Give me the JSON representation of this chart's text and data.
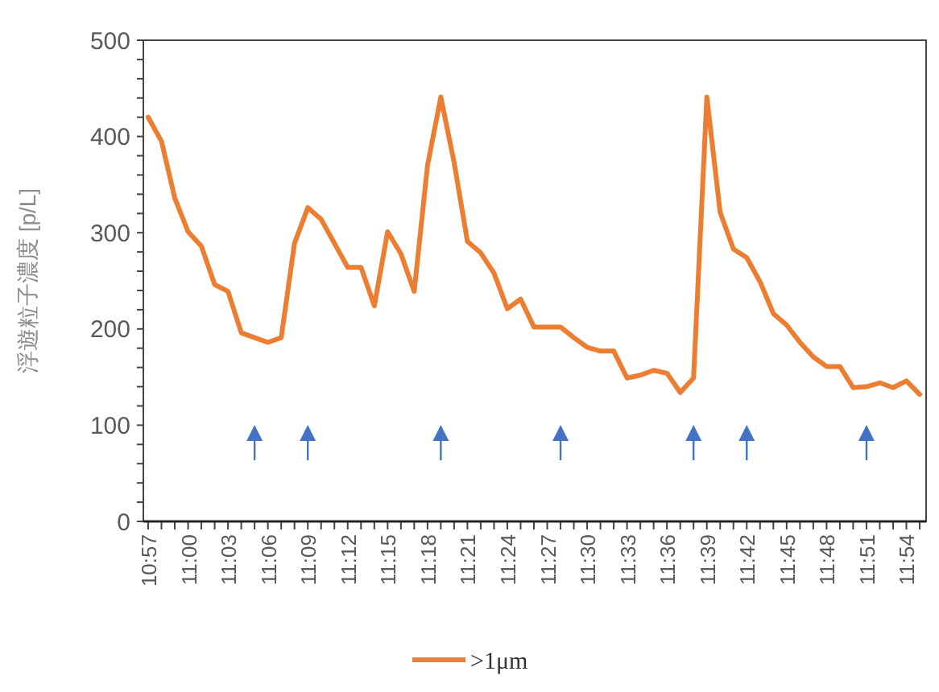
{
  "chart_data": {
    "type": "line",
    "ylabel": "浮遊粒子濃度 [p/L]",
    "categories": [
      "10:57",
      null,
      null,
      "11:00",
      null,
      null,
      "11:03",
      null,
      null,
      "11:06",
      null,
      null,
      "11:09",
      null,
      null,
      "11:12",
      null,
      null,
      "11:15",
      null,
      null,
      "11:18",
      null,
      null,
      "11:21",
      null,
      null,
      "11:24",
      null,
      null,
      "11:27",
      null,
      null,
      "11:30",
      null,
      null,
      "11:33",
      null,
      null,
      "11:36",
      null,
      null,
      "11:39",
      null,
      null,
      "11:42",
      null,
      null,
      "11:45",
      null,
      null,
      "11:48",
      null,
      null,
      "11:51",
      null,
      null,
      "11:54",
      null
    ],
    "series": [
      {
        "name": ">1μm",
        "color": "#ed7d31",
        "values": [
          420,
          395,
          336,
          301,
          286,
          246,
          239,
          196,
          191,
          186,
          191,
          289,
          326,
          314,
          289,
          264,
          264,
          224,
          301,
          278,
          239,
          370,
          441,
          373,
          291,
          279,
          258,
          221,
          231,
          202,
          202,
          202,
          191,
          181,
          177,
          177,
          149,
          152,
          157,
          154,
          134,
          149,
          441,
          321,
          283,
          274,
          249,
          216,
          204,
          186,
          171,
          161,
          161,
          139,
          140,
          144,
          139,
          146,
          132
        ]
      }
    ],
    "ylim": [
      0,
      500
    ],
    "yticks": [
      0,
      {
        "value": 20,
        "label": null
      },
      {
        "value": 40,
        "label": null
      },
      {
        "value": 60,
        "label": null
      },
      {
        "value": 80,
        "label": null
      },
      100,
      {
        "value": 120,
        "label": null
      },
      {
        "value": 140,
        "label": null
      },
      {
        "value": 160,
        "label": null
      },
      {
        "value": 180,
        "label": null
      },
      200,
      {
        "value": 220,
        "label": null
      },
      {
        "value": 240,
        "label": null
      },
      {
        "value": 260,
        "label": null
      },
      {
        "value": 280,
        "label": null
      },
      300,
      {
        "value": 320,
        "label": null
      },
      {
        "value": 340,
        "label": null
      },
      {
        "value": 360,
        "label": null
      },
      {
        "value": 380,
        "label": null
      },
      400,
      {
        "value": 420,
        "label": null
      },
      {
        "value": 440,
        "label": null
      },
      {
        "value": 460,
        "label": null
      },
      {
        "value": 480,
        "label": null
      },
      500
    ],
    "grid": false,
    "legend": "bottom",
    "marker": "none",
    "line_style": "solid"
  }
}
